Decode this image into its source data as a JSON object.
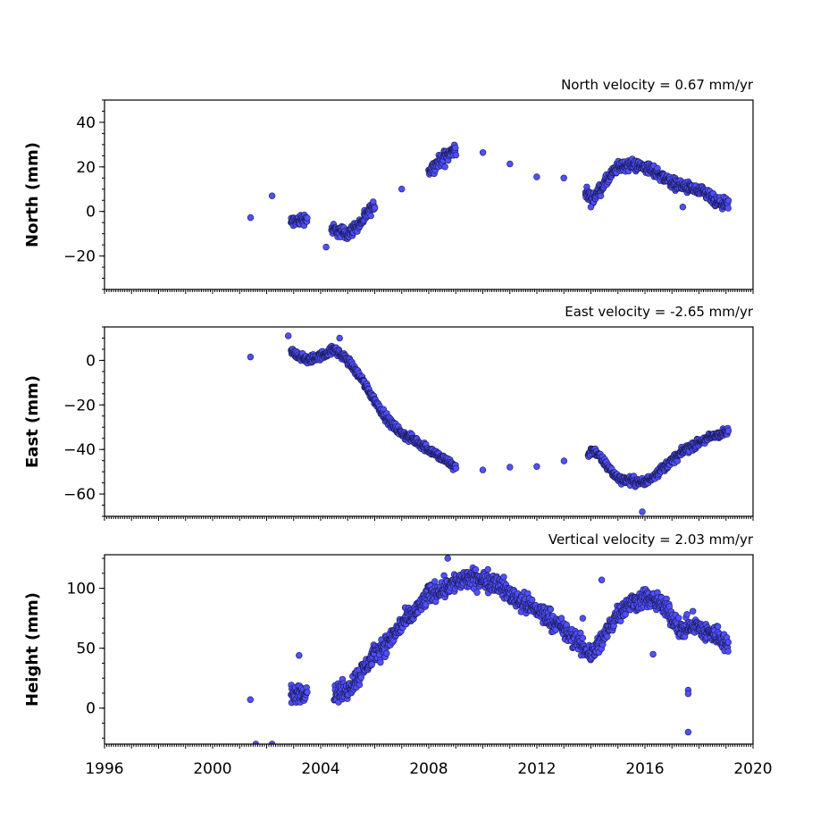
{
  "chart_data": [
    {
      "type": "scatter",
      "title": "North velocity = 0.67 mm/yr",
      "ylabel": "North (mm)",
      "xlim": [
        1996,
        2020
      ],
      "ylim": [
        -35,
        50
      ],
      "yticks": [
        40,
        20,
        0,
        -20
      ],
      "ytick_labels": [
        "40",
        "20",
        "0",
        "−20"
      ],
      "trend": [
        [
          2001.4,
          -3
        ],
        [
          2002.9,
          -5
        ],
        [
          2003.5,
          -3
        ],
        [
          2004.4,
          -8
        ],
        [
          2005.0,
          -10
        ],
        [
          2005.5,
          -5
        ],
        [
          2006.0,
          3
        ],
        [
          2007.0,
          12
        ],
        [
          2008.0,
          18
        ],
        [
          2008.6,
          25
        ],
        [
          2009.0,
          28
        ],
        [
          2010.0,
          27
        ],
        [
          2011.0,
          23
        ],
        [
          2012.0,
          18
        ],
        [
          2013.0,
          13
        ],
        [
          2013.8,
          8
        ],
        [
          2014.1,
          6
        ],
        [
          2014.6,
          14
        ],
        [
          2015.0,
          20
        ],
        [
          2015.5,
          21
        ],
        [
          2016.0,
          20
        ],
        [
          2016.5,
          17
        ],
        [
          2017.0,
          13
        ],
        [
          2017.5,
          11
        ],
        [
          2018.0,
          9
        ],
        [
          2018.4,
          7
        ],
        [
          2018.6,
          4
        ],
        [
          2019.1,
          3
        ]
      ],
      "outliers": [
        [
          2002.2,
          7
        ],
        [
          2004.2,
          -16
        ],
        [
          2014.0,
          2
        ],
        [
          2017.4,
          2
        ],
        [
          2008.6,
          20
        ]
      ]
    },
    {
      "type": "scatter",
      "title": "East velocity = -2.65 mm/yr",
      "ylabel": "East (mm)",
      "xlim": [
        1996,
        2020
      ],
      "ylim": [
        -70,
        15
      ],
      "yticks": [
        0,
        -20,
        -40,
        -60
      ],
      "ytick_labels": [
        "0",
        "−20",
        "−40",
        "−60"
      ],
      "trend": [
        [
          2001.4,
          1
        ],
        [
          2002.9,
          4
        ],
        [
          2003.5,
          0
        ],
        [
          2004.0,
          2
        ],
        [
          2004.5,
          5
        ],
        [
          2005.0,
          0
        ],
        [
          2005.5,
          -8
        ],
        [
          2006.0,
          -18
        ],
        [
          2006.5,
          -27
        ],
        [
          2007.0,
          -33
        ],
        [
          2007.5,
          -36
        ],
        [
          2008.0,
          -40
        ],
        [
          2008.5,
          -44
        ],
        [
          2009.0,
          -48
        ],
        [
          2010.0,
          -49
        ],
        [
          2011.0,
          -48
        ],
        [
          2012.0,
          -48
        ],
        [
          2013.0,
          -46
        ],
        [
          2013.9,
          -42
        ],
        [
          2014.1,
          -40
        ],
        [
          2014.5,
          -46
        ],
        [
          2015.0,
          -53
        ],
        [
          2015.5,
          -54
        ],
        [
          2016.0,
          -55
        ],
        [
          2016.5,
          -50
        ],
        [
          2017.0,
          -45
        ],
        [
          2017.5,
          -40
        ],
        [
          2018.0,
          -37
        ],
        [
          2018.5,
          -34
        ],
        [
          2019.1,
          -32
        ]
      ],
      "outliers": [
        [
          2015.9,
          -68
        ],
        [
          2002.8,
          11
        ],
        [
          2004.7,
          10
        ]
      ]
    },
    {
      "type": "scatter",
      "title": "Vertical velocity = 2.03 mm/yr",
      "ylabel": "Height (mm)",
      "xlim": [
        1996,
        2020
      ],
      "xticks": [
        1996,
        2000,
        2004,
        2008,
        2012,
        2016,
        2020
      ],
      "xtick_labels": [
        "1996",
        "2000",
        "2004",
        "2008",
        "2012",
        "2016",
        "2020"
      ],
      "ylim": [
        -30,
        128
      ],
      "yticks": [
        100,
        50,
        0
      ],
      "ytick_labels": [
        "100",
        "50",
        "0"
      ],
      "trend": [
        [
          2001.4,
          10
        ],
        [
          2002.9,
          10
        ],
        [
          2003.5,
          15
        ],
        [
          2004.5,
          12
        ],
        [
          2005.0,
          15
        ],
        [
          2005.5,
          30
        ],
        [
          2006.0,
          45
        ],
        [
          2006.5,
          55
        ],
        [
          2007.0,
          70
        ],
        [
          2007.5,
          80
        ],
        [
          2008.0,
          95
        ],
        [
          2008.5,
          100
        ],
        [
          2009.0,
          105
        ],
        [
          2009.5,
          108
        ],
        [
          2010.0,
          107
        ],
        [
          2010.5,
          105
        ],
        [
          2011.0,
          95
        ],
        [
          2011.5,
          88
        ],
        [
          2012.0,
          82
        ],
        [
          2012.5,
          75
        ],
        [
          2013.0,
          65
        ],
        [
          2013.5,
          55
        ],
        [
          2014.0,
          45
        ],
        [
          2014.5,
          60
        ],
        [
          2015.0,
          80
        ],
        [
          2015.5,
          88
        ],
        [
          2016.0,
          92
        ],
        [
          2016.5,
          88
        ],
        [
          2016.9,
          80
        ],
        [
          2017.3,
          65
        ],
        [
          2017.8,
          70
        ],
        [
          2018.3,
          62
        ],
        [
          2018.8,
          60
        ],
        [
          2019.1,
          50
        ]
      ],
      "outliers": [
        [
          2001.6,
          -30
        ],
        [
          2002.2,
          -30
        ],
        [
          2003.2,
          44
        ],
        [
          2017.6,
          -20
        ],
        [
          2017.6,
          15
        ],
        [
          2017.6,
          12
        ],
        [
          2016.3,
          45
        ],
        [
          2008.7,
          125
        ],
        [
          2013.7,
          75
        ],
        [
          2014.4,
          107
        ]
      ]
    }
  ]
}
